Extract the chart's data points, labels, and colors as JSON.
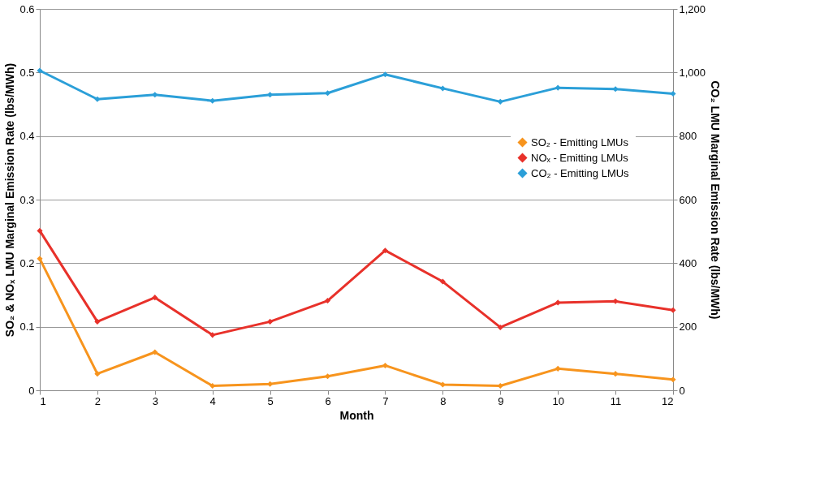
{
  "chart_data": {
    "type": "line",
    "xlabel": "Month",
    "ylabel": "SO₂ & NOₓ LMU Marginal Emission Rate (lbs/MWh)",
    "y2label": "CO₂ LMU Marginal Emission Rate (lbs/MWh)",
    "x": [
      1,
      2,
      3,
      4,
      5,
      6,
      7,
      8,
      9,
      10,
      11,
      12
    ],
    "xlim": [
      1,
      12
    ],
    "xticks": [
      1,
      2,
      3,
      4,
      5,
      6,
      7,
      8,
      9,
      10,
      11,
      12
    ],
    "ylim": [
      0,
      0.6
    ],
    "yticks": [
      0,
      0.1,
      0.2,
      0.3,
      0.4,
      0.5,
      0.6
    ],
    "y2lim": [
      0,
      1200
    ],
    "y2ticks": [
      0,
      200,
      400,
      600,
      800,
      {
        "value": 1000,
        "label": "1,000"
      },
      {
        "value": 1200,
        "label": "1,200"
      }
    ],
    "series": [
      {
        "name": "SO₂ - Emitting LMUs",
        "color": "#f7941d",
        "values": [
          0.207,
          0.026,
          0.06,
          0.007,
          0.01,
          0.022,
          0.039,
          0.009,
          0.007,
          0.034,
          0.026,
          0.017
        ]
      },
      {
        "name": "NOₓ - Emitting LMUs",
        "color": "#e8312a",
        "values": [
          0.251,
          0.108,
          0.146,
          0.087,
          0.108,
          0.141,
          0.22,
          0.171,
          0.099,
          0.138,
          0.14,
          0.126
        ]
      },
      {
        "name": "CO₂ - Emitting LMUs",
        "color": "#2b9fd8",
        "axis": "y2",
        "values": [
          1006,
          916,
          930,
          911,
          930,
          935,
          994,
          950,
          908,
          952,
          948,
          933
        ]
      }
    ],
    "grid": "y",
    "legend": "right",
    "marker": "diamond",
    "line_style": "solid"
  }
}
